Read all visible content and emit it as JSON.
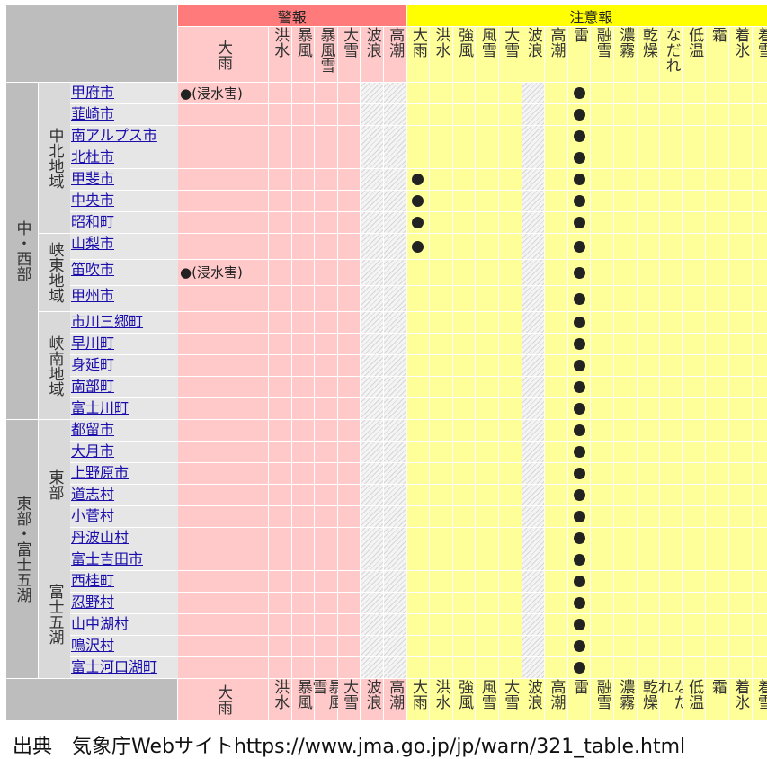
{
  "header": {
    "warning_group": "警報",
    "advisory_group": "注意報"
  },
  "warning_columns": [
    {
      "id": "heavy-rain",
      "label": "大雨"
    },
    {
      "id": "flood",
      "label": "洪水"
    },
    {
      "id": "storm",
      "label": "暴風"
    },
    {
      "id": "snowstorm",
      "label": "暴風雪"
    },
    {
      "id": "heavy-snow",
      "label": "大雪"
    },
    {
      "id": "high-waves",
      "label": "波浪"
    },
    {
      "id": "storm-surge",
      "label": "高潮"
    }
  ],
  "advisory_columns": [
    {
      "id": "heavy-rain",
      "label": "大雨"
    },
    {
      "id": "flood",
      "label": "洪水"
    },
    {
      "id": "strong-wind",
      "label": "強風"
    },
    {
      "id": "wind-snow",
      "label": "風雪"
    },
    {
      "id": "heavy-snow",
      "label": "大雪"
    },
    {
      "id": "high-waves",
      "label": "波浪"
    },
    {
      "id": "storm-surge",
      "label": "高潮"
    },
    {
      "id": "thunder",
      "label": "雷"
    },
    {
      "id": "snowmelt",
      "label": "融雪"
    },
    {
      "id": "dense-fog",
      "label": "濃霧"
    },
    {
      "id": "dry-air",
      "label": "乾燥"
    },
    {
      "id": "avalanche",
      "label": "なだれ"
    },
    {
      "id": "low-temp",
      "label": "低温"
    },
    {
      "id": "frost",
      "label": "霜"
    },
    {
      "id": "icing",
      "label": "着氷"
    },
    {
      "id": "snow-accretion",
      "label": "着雪"
    }
  ],
  "regions": [
    {
      "label": "中・西部",
      "subregions": [
        {
          "label": "中北地域",
          "cities": [
            "甲府市",
            "韮崎市",
            "南アルプス市",
            "北杜市",
            "甲斐市",
            "中央市",
            "昭和町"
          ]
        },
        {
          "label": "峡東地域",
          "cities": [
            "山梨市",
            "笛吹市",
            "甲州市"
          ]
        },
        {
          "label": "峡南地域",
          "cities": [
            "市川三郷町",
            "早川町",
            "身延町",
            "南部町",
            "富士川町"
          ]
        }
      ]
    },
    {
      "label": "東部・富士五湖",
      "subregions": [
        {
          "label": "東部",
          "cities": [
            "都留市",
            "大月市",
            "上野原市",
            "道志村",
            "小菅村",
            "丹波山村"
          ]
        },
        {
          "label": "富士五湖",
          "cities": [
            "富士吉田市",
            "西桂町",
            "忍野村",
            "山中湖村",
            "鳴沢村",
            "富士河口湖町"
          ]
        }
      ]
    }
  ],
  "warning_notes": {
    "甲府市": "●(浸水害)",
    "笛吹市": "●(浸水害)"
  },
  "advisory_heavy_rain_cities": [
    "甲斐市",
    "中央市",
    "昭和町",
    "山梨市"
  ],
  "advisory_thunder_cities": [
    "甲府市",
    "韮崎市",
    "南アルプス市",
    "北杜市",
    "甲斐市",
    "中央市",
    "昭和町",
    "山梨市",
    "笛吹市",
    "甲州市",
    "市川三郷町",
    "早川町",
    "身延町",
    "南部町",
    "富士川町",
    "都留市",
    "大月市",
    "上野原市",
    "道志村",
    "小菅村",
    "丹波山村",
    "富士吉田市",
    "西桂町",
    "忍野村",
    "山中湖村",
    "鳴沢村",
    "富士河口湖町"
  ],
  "source": "出典　気象庁Webサイトhttps://www.jma.go.jp/jp/warn/321_table.html",
  "colors": {
    "warning_header": "#ff7b7b",
    "warning_cell": "#ffc9c9",
    "advisory_header": "#ffff00",
    "advisory_cell": "#ffff99",
    "link": "#1a0dab"
  }
}
